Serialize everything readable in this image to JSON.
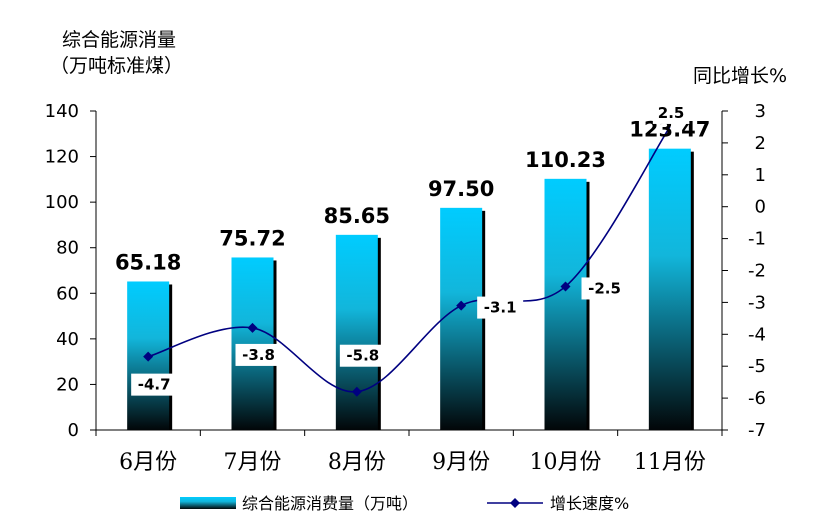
{
  "chart_data": {
    "type": "bar",
    "left_axis_title": [
      "综合能源消量",
      "（万吨标准煤）"
    ],
    "right_axis_title": "同比增长%",
    "categories": [
      "6月份",
      "7月份",
      "8月份",
      "9月份",
      "10月份",
      "11月份"
    ],
    "y_left": {
      "min": 0,
      "max": 140,
      "step": 20,
      "ticks": [
        "0",
        "20",
        "40",
        "60",
        "80",
        "100",
        "120",
        "140"
      ]
    },
    "y_right": {
      "min": -7,
      "max": 3,
      "step": 1,
      "ticks": [
        "-7",
        "-6",
        "-5",
        "-4",
        "-3",
        "-2",
        "-1",
        "0",
        "1",
        "2",
        "3"
      ]
    },
    "series": [
      {
        "name": "综合能源消费量（万吨）",
        "kind": "bar",
        "axis": "left",
        "values": [
          65.18,
          75.72,
          85.65,
          97.5,
          110.23,
          123.47
        ],
        "labels": [
          "65.18",
          "75.72",
          "85.65",
          "97.50",
          "110.23",
          "123.47"
        ],
        "color_top": "#00CCFF",
        "color_bottom": "#000000"
      },
      {
        "name": "增长速度%",
        "kind": "line",
        "axis": "right",
        "values": [
          -4.7,
          -3.8,
          -5.8,
          -3.1,
          -2.5,
          2.5
        ],
        "labels": [
          "-4.7",
          "-3.8",
          "-5.8",
          "-3.1",
          "-2.5",
          "2.5"
        ],
        "color": "#000080"
      }
    ],
    "legend": "bottom",
    "grid": false
  }
}
